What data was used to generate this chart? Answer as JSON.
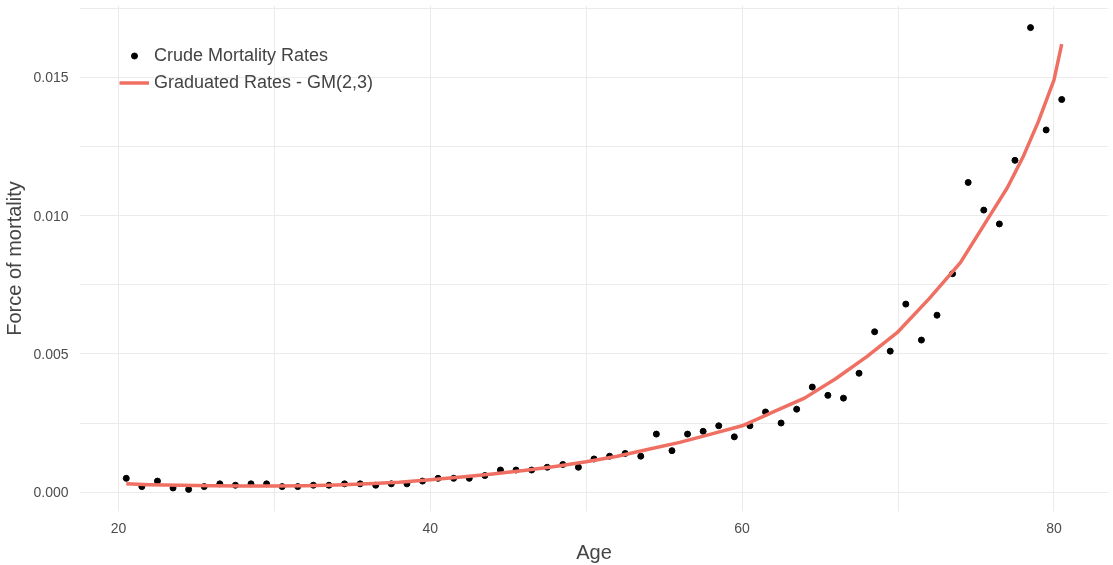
{
  "chart_data": {
    "type": "scatter",
    "xlabel": "Age",
    "ylabel": "Force of mortality",
    "xlim": [
      17.5,
      83.5
    ],
    "ylim": [
      -0.0007,
      0.0176
    ],
    "xticks": [
      20,
      {
        "value": 30,
        "label": null
      },
      40,
      {
        "value": 50,
        "label": null
      },
      60,
      {
        "value": 70,
        "label": null
      },
      80
    ],
    "yticks": [
      {
        "value": 0,
        "label": "0.000"
      },
      {
        "value": 0.0025,
        "label": null
      },
      {
        "value": 0.005,
        "label": "0.005"
      },
      {
        "value": 0.0075,
        "label": null
      },
      {
        "value": 0.01,
        "label": "0.010"
      },
      {
        "value": 0.0125,
        "label": null
      },
      0.015,
      {
        "value": 0.0175,
        "label": null
      }
    ],
    "grid": true,
    "legend": "top left",
    "series": [
      {
        "name": "Crude Mortality Rates",
        "marker": "circle",
        "color": "#000000",
        "x": [
          20.5,
          21.5,
          22.5,
          23.5,
          24.5,
          25.5,
          26.5,
          27.5,
          28.5,
          29.5,
          30.5,
          31.5,
          32.5,
          33.5,
          34.5,
          35.5,
          36.5,
          37.5,
          38.5,
          39.5,
          40.5,
          41.5,
          42.5,
          43.5,
          44.5,
          45.5,
          46.5,
          47.5,
          48.5,
          49.5,
          50.5,
          51.5,
          52.5,
          53.5,
          54.5,
          55.5,
          56.5,
          57.5,
          58.5,
          59.5,
          60.5,
          61.5,
          62.5,
          63.5,
          64.5,
          65.5,
          66.5,
          67.5,
          68.5,
          69.5,
          70.5,
          71.5,
          72.5,
          73.5,
          74.5,
          75.5,
          76.5,
          77.5,
          78.5,
          79.5,
          80.5
        ],
        "values": [
          0.0005,
          0.0002,
          0.0004,
          0.00015,
          0.0001,
          0.0002,
          0.0003,
          0.00025,
          0.0003,
          0.0003,
          0.0002,
          0.0002,
          0.00025,
          0.00025,
          0.0003,
          0.0003,
          0.00025,
          0.0003,
          0.0003,
          0.0004,
          0.0005,
          0.0005,
          0.0005,
          0.0006,
          0.0008,
          0.0008,
          0.0008,
          0.0009,
          0.001,
          0.0009,
          0.0012,
          0.0013,
          0.0014,
          0.0013,
          0.0021,
          0.0015,
          0.0021,
          0.0022,
          0.0024,
          0.002,
          0.0024,
          0.0029,
          0.0025,
          0.003,
          0.0038,
          0.0035,
          0.0034,
          0.0043,
          0.0058,
          0.0051,
          0.0068,
          0.0055,
          0.0064,
          0.0079,
          0.0112,
          0.0102,
          0.0097,
          0.012,
          0.0168,
          0.0131,
          0.0142
        ]
      },
      {
        "name": "Graduated Rates - GM(2,3)",
        "type": "line",
        "line_style": "solid",
        "color": "#ef6f62",
        "x": [
          20.5,
          22,
          24,
          26,
          28,
          30,
          32,
          34,
          36,
          38,
          40,
          42,
          44,
          46,
          48,
          50,
          52,
          54,
          56,
          58,
          60,
          62,
          64,
          66,
          68,
          70,
          72,
          74,
          76,
          77,
          78,
          79,
          80,
          80.5
        ],
        "values": [
          0.0003,
          0.00027,
          0.00025,
          0.00023,
          0.00022,
          0.00022,
          0.00023,
          0.00026,
          0.0003,
          0.00036,
          0.00045,
          0.00055,
          0.00066,
          0.00078,
          0.00093,
          0.0011,
          0.0013,
          0.00155,
          0.0018,
          0.0021,
          0.0024,
          0.0029,
          0.0034,
          0.0041,
          0.0049,
          0.0058,
          0.007,
          0.0083,
          0.0101,
          0.011,
          0.0121,
          0.0134,
          0.0149,
          0.0162
        ]
      }
    ]
  }
}
